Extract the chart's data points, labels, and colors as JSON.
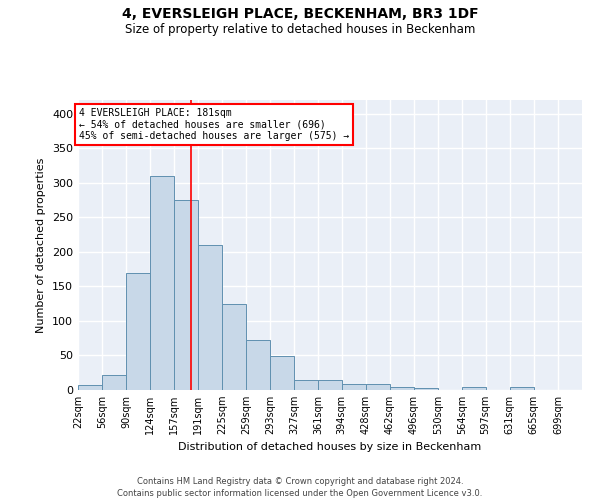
{
  "title": "4, EVERSLEIGH PLACE, BECKENHAM, BR3 1DF",
  "subtitle": "Size of property relative to detached houses in Beckenham",
  "xlabel": "Distribution of detached houses by size in Beckenham",
  "ylabel": "Number of detached properties",
  "bar_left_edges": [
    22,
    56,
    90,
    124,
    157,
    191,
    225,
    259,
    293,
    327,
    361,
    394,
    428,
    462,
    496,
    530,
    564,
    597,
    631,
    665
  ],
  "bar_heights": [
    7,
    22,
    170,
    310,
    275,
    210,
    125,
    73,
    49,
    15,
    14,
    9,
    8,
    4,
    3,
    0,
    4,
    0,
    4,
    0
  ],
  "bar_widths": [
    34,
    34,
    34,
    33,
    34,
    34,
    34,
    34,
    34,
    34,
    33,
    34,
    34,
    34,
    34,
    34,
    33,
    34,
    34,
    34
  ],
  "tick_labels": [
    "22sqm",
    "56sqm",
    "90sqm",
    "124sqm",
    "157sqm",
    "191sqm",
    "225sqm",
    "259sqm",
    "293sqm",
    "327sqm",
    "361sqm",
    "394sqm",
    "428sqm",
    "462sqm",
    "496sqm",
    "530sqm",
    "564sqm",
    "597sqm",
    "631sqm",
    "665sqm",
    "699sqm"
  ],
  "bar_color": "#c8d8e8",
  "bar_edge_color": "#6090b0",
  "vline_x": 181,
  "vline_color": "red",
  "annotation_title": "4 EVERSLEIGH PLACE: 181sqm",
  "annotation_line1": "← 54% of detached houses are smaller (696)",
  "annotation_line2": "45% of semi-detached houses are larger (575) →",
  "annotation_box_color": "white",
  "annotation_box_edge": "red",
  "ylim": [
    0,
    420
  ],
  "xlim": [
    22,
    733
  ],
  "yticks": [
    0,
    50,
    100,
    150,
    200,
    250,
    300,
    350,
    400
  ],
  "bg_color": "#eaeff7",
  "grid_color": "white",
  "footer_line1": "Contains HM Land Registry data © Crown copyright and database right 2024.",
  "footer_line2": "Contains public sector information licensed under the Open Government Licence v3.0."
}
